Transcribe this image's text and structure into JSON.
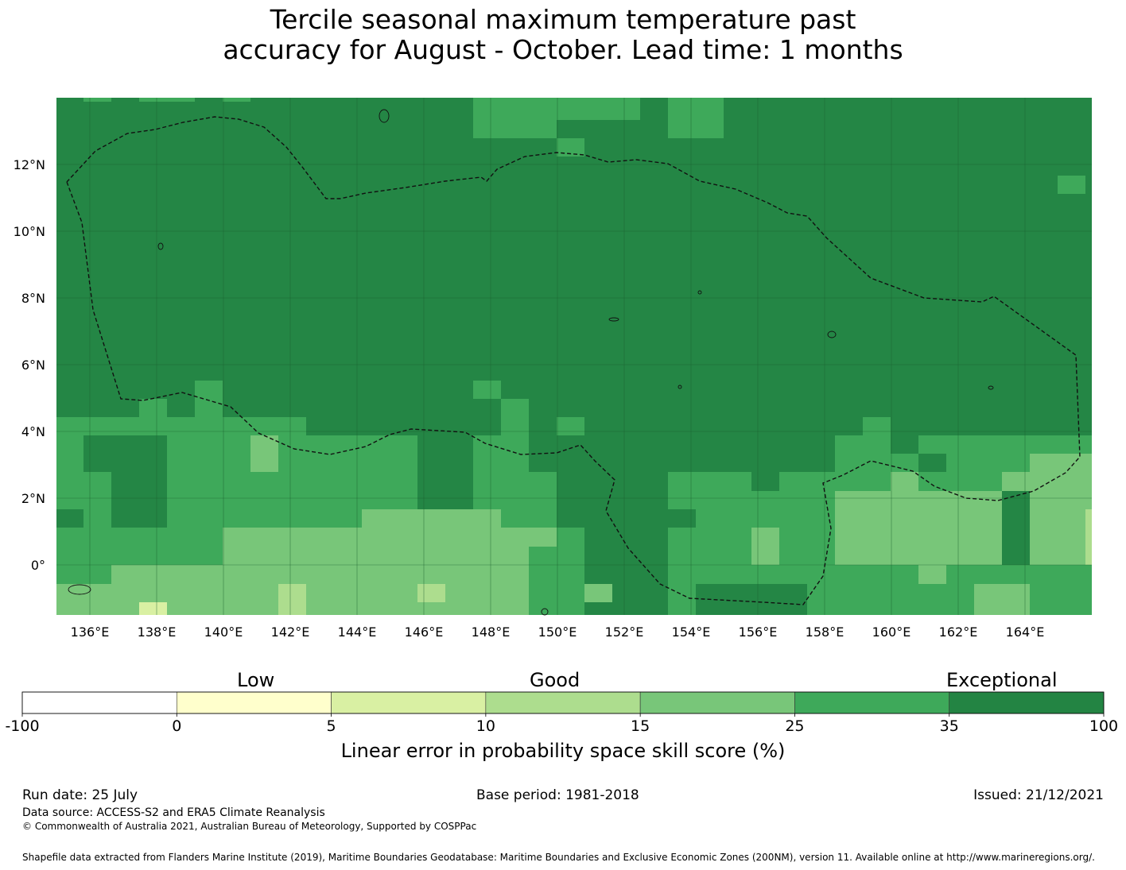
{
  "title": {
    "line1": "Tercile seasonal maximum temperature past",
    "line2": "accuracy for August - October. Lead time: 1 months"
  },
  "map": {
    "lon_range": [
      135,
      166
    ],
    "lat_range": [
      -1.5,
      14
    ],
    "lon_ticks": [
      "136°E",
      "138°E",
      "140°E",
      "142°E",
      "144°E",
      "146°E",
      "148°E",
      "150°E",
      "152°E",
      "154°E",
      "156°E",
      "158°E",
      "160°E",
      "162°E",
      "164°E"
    ],
    "lat_ticks": [
      "12°N",
      "10°N",
      "8°N",
      "6°N",
      "4°N",
      "2°N",
      "0°"
    ],
    "gridlines": true,
    "regions": {
      "exceptional": "#248645",
      "very_good": "#3ea95a",
      "good": "#78c679",
      "fair": "#addd8e",
      "low": "#d9f0a3"
    },
    "eez_boundary": "dashed"
  },
  "colorbar": {
    "categories": [
      "Low",
      "Good",
      "Exceptional"
    ],
    "ticks": [
      "-100",
      "0",
      "5",
      "10",
      "15",
      "25",
      "35",
      "100"
    ],
    "colors": [
      "#ffffff",
      "#ffffcc",
      "#d9f0a3",
      "#addd8e",
      "#78c679",
      "#3ea95a",
      "#238443"
    ],
    "label": "Linear error in probability space skill score (%)"
  },
  "footer": {
    "run_date": "Run date: 25 July",
    "base_period": "Base period: 1981-2018",
    "issued": "Issued: 21/12/2021",
    "data_source": "Data source: ACCESS-S2 and ERA5 Climate Reanalysis",
    "copyright": "© Commonwealth of Australia 2021, Australian Bureau of Meteorology, Supported by COSPPac",
    "shapefile": "Shapefile data extracted from Flanders Marine Institute (2019), Maritime Boundaries Geodatabase: Maritime Boundaries and Exclusive Economic Zones (200NM), version 11. Available online at http://www.marineregions.org/."
  }
}
